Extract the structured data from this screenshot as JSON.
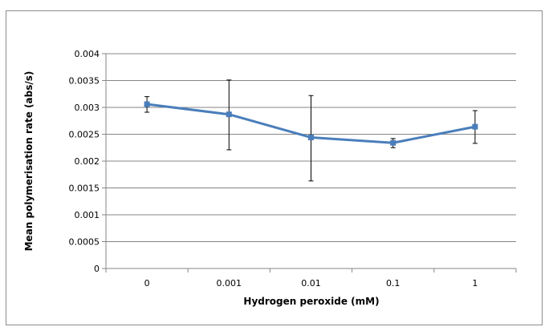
{
  "chart_data": {
    "type": "line",
    "title": "",
    "xlabel": "Hydrogen peroxide (mM)",
    "ylabel": "Mean polymerisation rate (abs/s)",
    "categories": [
      "0",
      "0.001",
      "0.01",
      "0.1",
      "1"
    ],
    "series": [
      {
        "values": [
          0.00306,
          0.00287,
          0.00244,
          0.00234,
          0.00264
        ],
        "error_upper": [
          0.0032,
          0.00351,
          0.00322,
          0.00242,
          0.00294
        ],
        "error_lower": [
          0.00291,
          0.00221,
          0.00163,
          0.00225,
          0.00233
        ],
        "color": "#4a7ebb",
        "marker": "square"
      }
    ],
    "ylim": [
      0,
      0.004
    ],
    "yticks": [
      "0",
      "0.0005",
      "0.001",
      "0.0015",
      "0.002",
      "0.0025",
      "0.003",
      "0.0035",
      "0.004"
    ],
    "grid": "horizontal",
    "legend": "none"
  }
}
